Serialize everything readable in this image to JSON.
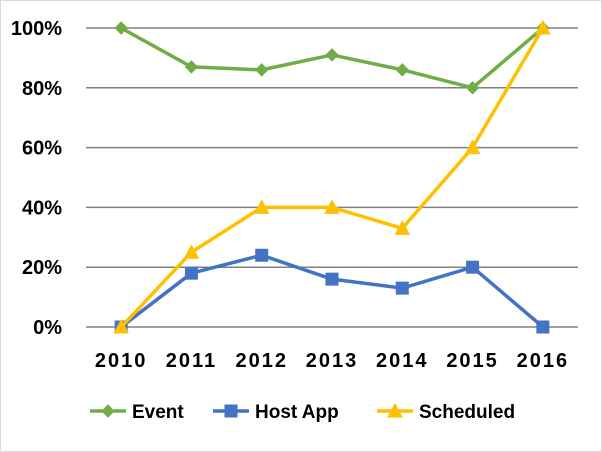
{
  "chart_data": {
    "type": "line",
    "title": "",
    "xlabel": "",
    "ylabel": "",
    "categories": [
      "2010",
      "2011",
      "2012",
      "2013",
      "2014",
      "2015",
      "2016"
    ],
    "ylim": [
      0,
      100
    ],
    "y_ticks": [
      0,
      20,
      40,
      60,
      80,
      100
    ],
    "y_tick_labels": [
      "0%",
      "20%",
      "40%",
      "60%",
      "80%",
      "100%"
    ],
    "grid": "horizontal",
    "legend_position": "bottom",
    "series": [
      {
        "name": "Event",
        "color": "#70ad47",
        "marker": "diamond",
        "values": [
          100,
          87,
          86,
          91,
          86,
          80,
          100
        ]
      },
      {
        "name": "Host App",
        "color": "#4472c4",
        "marker": "square",
        "values": [
          0,
          18,
          24,
          16,
          13,
          20,
          0
        ]
      },
      {
        "name": "Scheduled",
        "color": "#ffc000",
        "marker": "triangle",
        "values": [
          0,
          25,
          40,
          40,
          33,
          60,
          100
        ]
      }
    ]
  }
}
